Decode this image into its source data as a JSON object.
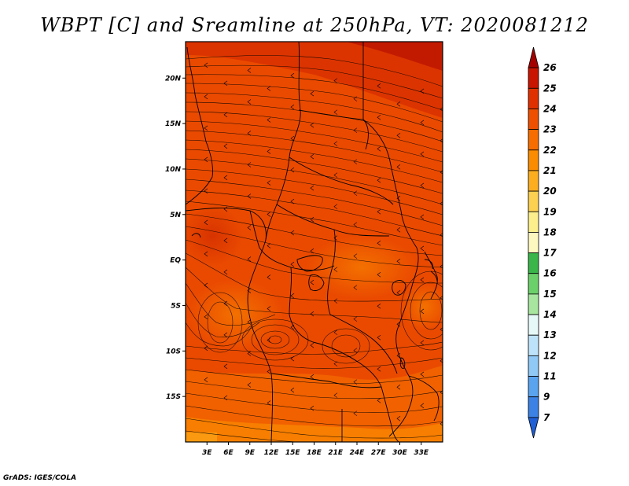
{
  "title": "WBPT [C] and Sreamline at 250hPa, VT: 2020081212",
  "footer": "GrADS: IGES/COLA",
  "map": {
    "lon_range": [
      0,
      36
    ],
    "lat_range": [
      -20,
      24
    ],
    "lon_labels": [
      "3E",
      "6E",
      "9E",
      "12E",
      "15E",
      "18E",
      "21E",
      "24E",
      "27E",
      "30E",
      "33E"
    ],
    "lat_labels": [
      "20N",
      "15N",
      "10N",
      "5N",
      "EQ",
      "5S",
      "10S",
      "15S"
    ]
  },
  "colorbar": {
    "labels": [
      "26",
      "25",
      "24",
      "23",
      "22",
      "21",
      "20",
      "19",
      "18",
      "17",
      "16",
      "15",
      "14",
      "13",
      "12",
      "11",
      "9",
      "7"
    ],
    "colors": [
      "#a50000",
      "#c81400",
      "#e03000",
      "#ee4f00",
      "#f76d00",
      "#fb8c00",
      "#fcae20",
      "#fcd050",
      "#fdef8c",
      "#fdf7c0",
      "#39b54a",
      "#6cd06a",
      "#a8e6a0",
      "#e6f8f8",
      "#bde3fb",
      "#90c8f6",
      "#5aa3ef",
      "#3c82e4",
      "#1f5fd6"
    ]
  }
}
